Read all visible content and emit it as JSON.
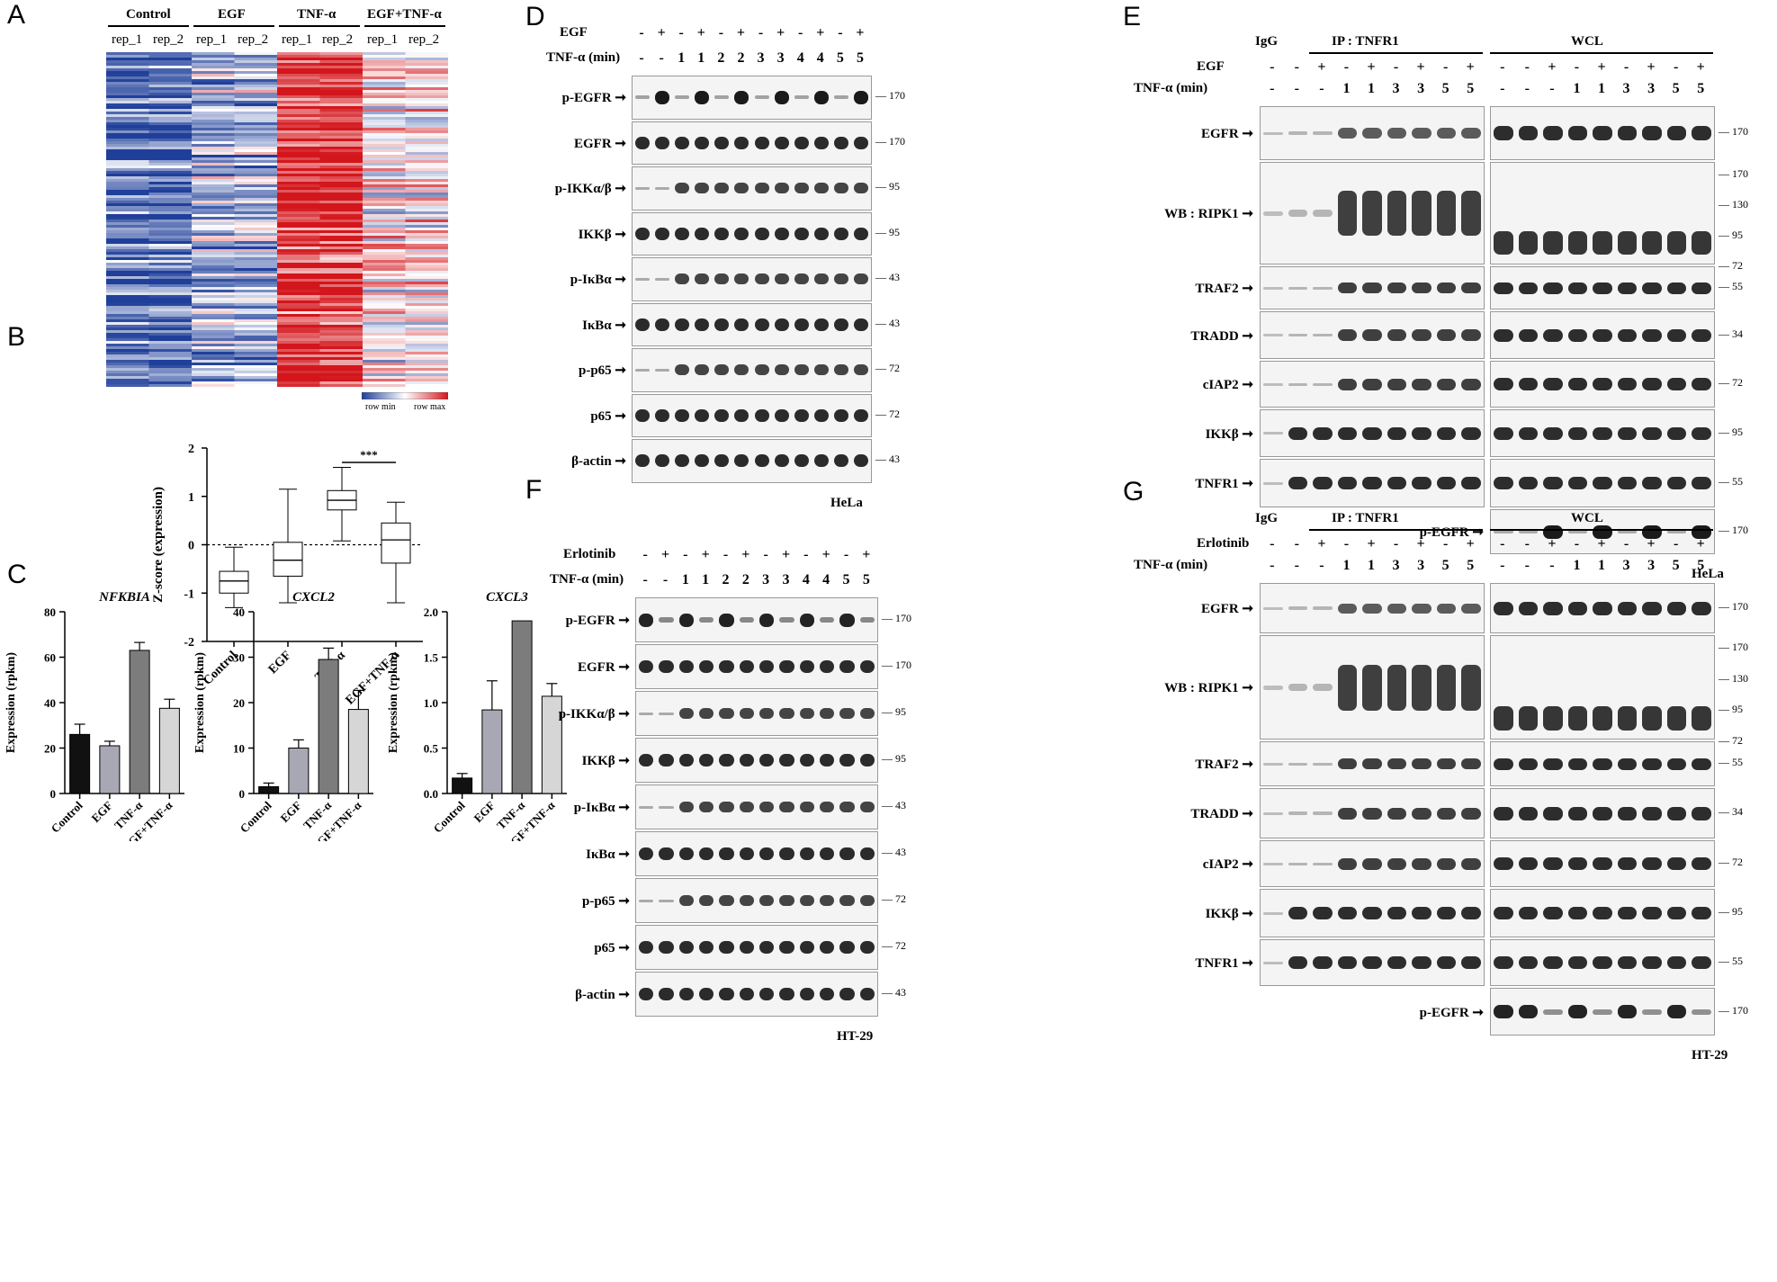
{
  "panels": {
    "A": "A",
    "B": "B",
    "C": "C",
    "D": "D",
    "E": "E",
    "F": "F",
    "G": "G"
  },
  "heatmap": {
    "groups": [
      "Control",
      "EGF",
      "TNF-α",
      "EGF+TNF-α"
    ],
    "reps": [
      "rep_1",
      "rep_2",
      "rep_1",
      "rep_2",
      "rep_1",
      "rep_2",
      "rep_1",
      "rep_2"
    ],
    "legend_min": "row min",
    "legend_max": "row max",
    "colors": {
      "low": "#1f3f9a",
      "mid": "#ffffff",
      "high": "#d3161c"
    }
  },
  "chart_data": [
    {
      "id": "B",
      "type": "box",
      "ylabel": "Z-score (expression)",
      "ylim": [
        -2,
        2
      ],
      "yticks": [
        "2",
        "1",
        "0",
        "-1",
        "-2"
      ],
      "categories": [
        "Control",
        "EGF",
        "TNF-α",
        "EGF+TNF-α"
      ],
      "boxes": [
        {
          "min": -1.3,
          "q1": -1.0,
          "median": -0.75,
          "q3": -0.55,
          "max": -0.05
        },
        {
          "min": -1.2,
          "q1": -0.65,
          "median": -0.32,
          "q3": 0.05,
          "max": 1.15
        },
        {
          "min": 0.08,
          "q1": 0.72,
          "median": 0.92,
          "q3": 1.12,
          "max": 1.6
        },
        {
          "min": -1.2,
          "q1": -0.38,
          "median": 0.1,
          "q3": 0.45,
          "max": 0.88
        }
      ],
      "significance": "***"
    },
    {
      "id": "C1",
      "type": "bar",
      "title": "NFKBIA",
      "ylabel": "Expression (rpkm)",
      "ylim": [
        0,
        80
      ],
      "yticks": [
        "0",
        "20",
        "40",
        "60",
        "80"
      ],
      "categories": [
        "Control",
        "EGF",
        "TNF-α",
        "EGF+TNF-α"
      ],
      "values": [
        26,
        21,
        63,
        37.5
      ],
      "errors": [
        4.5,
        2,
        3.5,
        4
      ]
    },
    {
      "id": "C2",
      "type": "bar",
      "title": "CXCL2",
      "ylabel": "Expression (rpkm)",
      "ylim": [
        0,
        40
      ],
      "yticks": [
        "0",
        "10",
        "20",
        "30",
        "40"
      ],
      "categories": [
        "Control",
        "EGF",
        "TNF-α",
        "EGF+TNF-α"
      ],
      "values": [
        1.5,
        10,
        29.5,
        18.5
      ],
      "errors": [
        0.8,
        1.8,
        2.5,
        4.2
      ]
    },
    {
      "id": "C3",
      "type": "bar",
      "title": "CXCL3",
      "ylabel": "Expression (rpkm)",
      "ylim": [
        0,
        2
      ],
      "yticks": [
        "0.0",
        "0.5",
        "1.0",
        "1.5",
        "2.0"
      ],
      "categories": [
        "Control",
        "EGF",
        "TNF-α",
        "EGF+TNF-α"
      ],
      "values": [
        0.17,
        0.92,
        1.9,
        1.07
      ],
      "errors": [
        0.05,
        0.32,
        0,
        0.14
      ]
    }
  ],
  "bar_colors": [
    "#111111",
    "#a8a8b4",
    "#7c7c7c",
    "#d6d6d6"
  ],
  "D": {
    "treat_label": "EGF",
    "treat": [
      "-",
      "+",
      "-",
      "+",
      "-",
      "+",
      "-",
      "+",
      "-",
      "+",
      "-",
      "+"
    ],
    "tnf_label": "TNF-α (min)",
    "tnf": [
      "-",
      "-",
      "1",
      "1",
      "2",
      "2",
      "3",
      "3",
      "4",
      "4",
      "5",
      "5"
    ],
    "rows": [
      {
        "label": "p-EGFR",
        "mw": "170"
      },
      {
        "label": "EGFR",
        "mw": "170"
      },
      {
        "label": "p-IKKα/β",
        "mw": "95"
      },
      {
        "label": "IKKβ",
        "mw": "95"
      },
      {
        "label": "p-IκBα",
        "mw": "43"
      },
      {
        "label": "IκBα",
        "mw": "43"
      },
      {
        "label": "p-p65",
        "mw": "72"
      },
      {
        "label": "p65",
        "mw": "72"
      },
      {
        "label": "β-actin",
        "mw": "43"
      }
    ],
    "cell": "HeLa"
  },
  "F": {
    "treat_label": "Erlotinib",
    "treat": [
      "-",
      "+",
      "-",
      "+",
      "-",
      "+",
      "-",
      "+",
      "-",
      "+",
      "-",
      "+"
    ],
    "tnf_label": "TNF-α (min)",
    "tnf": [
      "-",
      "-",
      "1",
      "1",
      "2",
      "2",
      "3",
      "3",
      "4",
      "4",
      "5",
      "5"
    ],
    "rows": [
      {
        "label": "p-EGFR",
        "mw": "170"
      },
      {
        "label": "EGFR",
        "mw": "170"
      },
      {
        "label": "p-IKKα/β",
        "mw": "95"
      },
      {
        "label": "IKKβ",
        "mw": "95"
      },
      {
        "label": "p-IκBα",
        "mw": "43"
      },
      {
        "label": "IκBα",
        "mw": "43"
      },
      {
        "label": "p-p65",
        "mw": "72"
      },
      {
        "label": "p65",
        "mw": "72"
      },
      {
        "label": "β-actin",
        "mw": "43"
      }
    ],
    "cell": "HT-29"
  },
  "E": {
    "igg": "IgG",
    "ip": "IP : TNFR1",
    "wcl": "WCL",
    "treat_label": "EGF",
    "tnf_label": "TNF-α (min)",
    "treat": [
      "-",
      "-",
      "+",
      "-",
      "+",
      "-",
      "+",
      "-",
      "+",
      "-",
      "-",
      "+",
      "-",
      "+",
      "-",
      "+",
      "-",
      "+"
    ],
    "tnf": [
      "-",
      "-",
      "-",
      "1",
      "1",
      "3",
      "3",
      "5",
      "5",
      "-",
      "-",
      "-",
      "1",
      "1",
      "3",
      "3",
      "5",
      "5"
    ],
    "rows": [
      {
        "label": "EGFR",
        "mw": "170"
      },
      {
        "label": "WB : RIPK1",
        "mws": [
          "170",
          "130",
          "95",
          "72"
        ]
      },
      {
        "label": "TRAF2",
        "mw": "55"
      },
      {
        "label": "TRADD",
        "mw": "34"
      },
      {
        "label": "cIAP2",
        "mw": "72"
      },
      {
        "label": "IKKβ",
        "mw": "95"
      },
      {
        "label": "TNFR1",
        "mw": "55"
      },
      {
        "label": "p-EGFR",
        "mw": "170"
      }
    ],
    "cell": "HeLa"
  },
  "G": {
    "igg": "IgG",
    "ip": "IP : TNFR1",
    "wcl": "WCL",
    "treat_label": "Erlotinib",
    "tnf_label": "TNF-α (min)",
    "treat": [
      "-",
      "-",
      "+",
      "-",
      "+",
      "-",
      "+",
      "-",
      "+",
      "-",
      "-",
      "+",
      "-",
      "+",
      "-",
      "+",
      "-",
      "+"
    ],
    "tnf": [
      "-",
      "-",
      "-",
      "1",
      "1",
      "3",
      "3",
      "5",
      "5",
      "-",
      "-",
      "-",
      "1",
      "1",
      "3",
      "3",
      "5",
      "5"
    ],
    "rows": [
      {
        "label": "EGFR",
        "mw": "170"
      },
      {
        "label": "WB : RIPK1",
        "mws": [
          "170",
          "130",
          "95",
          "72"
        ]
      },
      {
        "label": "TRAF2",
        "mw": "55"
      },
      {
        "label": "TRADD",
        "mw": "34"
      },
      {
        "label": "cIAP2",
        "mw": "72"
      },
      {
        "label": "IKKβ",
        "mw": "95"
      },
      {
        "label": "TNFR1",
        "mw": "55"
      },
      {
        "label": "p-EGFR",
        "mw": "170"
      }
    ],
    "cell": "HT-29"
  }
}
